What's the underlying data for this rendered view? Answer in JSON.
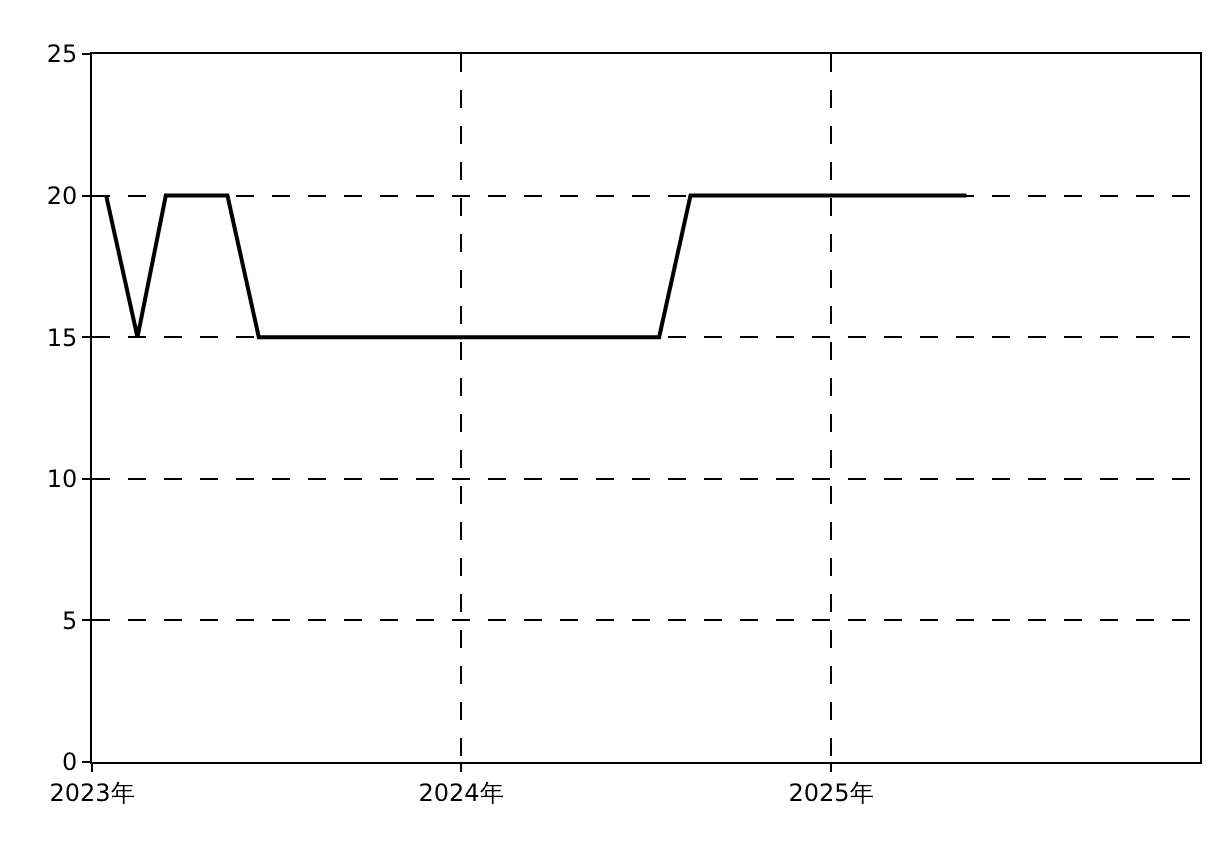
{
  "chart_data": {
    "type": "line",
    "x": [
      "2023-01-15",
      "2023-02-15",
      "2023-03-15",
      "2023-04-15",
      "2023-05-15",
      "2023-06-15",
      "2023-07-15",
      "2023-08-15",
      "2023-09-15",
      "2023-10-15",
      "2023-11-15",
      "2023-12-15",
      "2024-01-15",
      "2024-02-15",
      "2024-03-15",
      "2024-04-15",
      "2024-05-15",
      "2024-06-15",
      "2024-07-15",
      "2024-08-15",
      "2024-09-15",
      "2024-10-15",
      "2024-11-15",
      "2024-12-15",
      "2025-01-15",
      "2025-02-15",
      "2025-03-15",
      "2025-04-15",
      "2025-05-15"
    ],
    "series": [
      {
        "color": "#000000",
        "values": [
          20,
          15,
          20,
          20,
          20,
          15,
          15,
          15,
          15,
          15,
          15,
          15,
          15,
          15,
          15,
          15,
          15,
          15,
          15,
          20,
          20,
          20,
          20,
          20,
          20,
          20,
          20,
          20,
          20
        ]
      }
    ],
    "xlim": [
      "2023-01-01",
      "2026-01-01"
    ],
    "xticks": [
      {
        "value": "2023-01-01",
        "label": "2023年"
      },
      {
        "value": "2024-01-01",
        "label": "2024年"
      },
      {
        "value": "2025-01-01",
        "label": "2025年"
      }
    ],
    "ylim": [
      0,
      25
    ],
    "yticks": [
      0,
      5,
      10,
      15,
      20,
      25
    ],
    "grid": true,
    "marker": "none",
    "line_style": "solid"
  }
}
